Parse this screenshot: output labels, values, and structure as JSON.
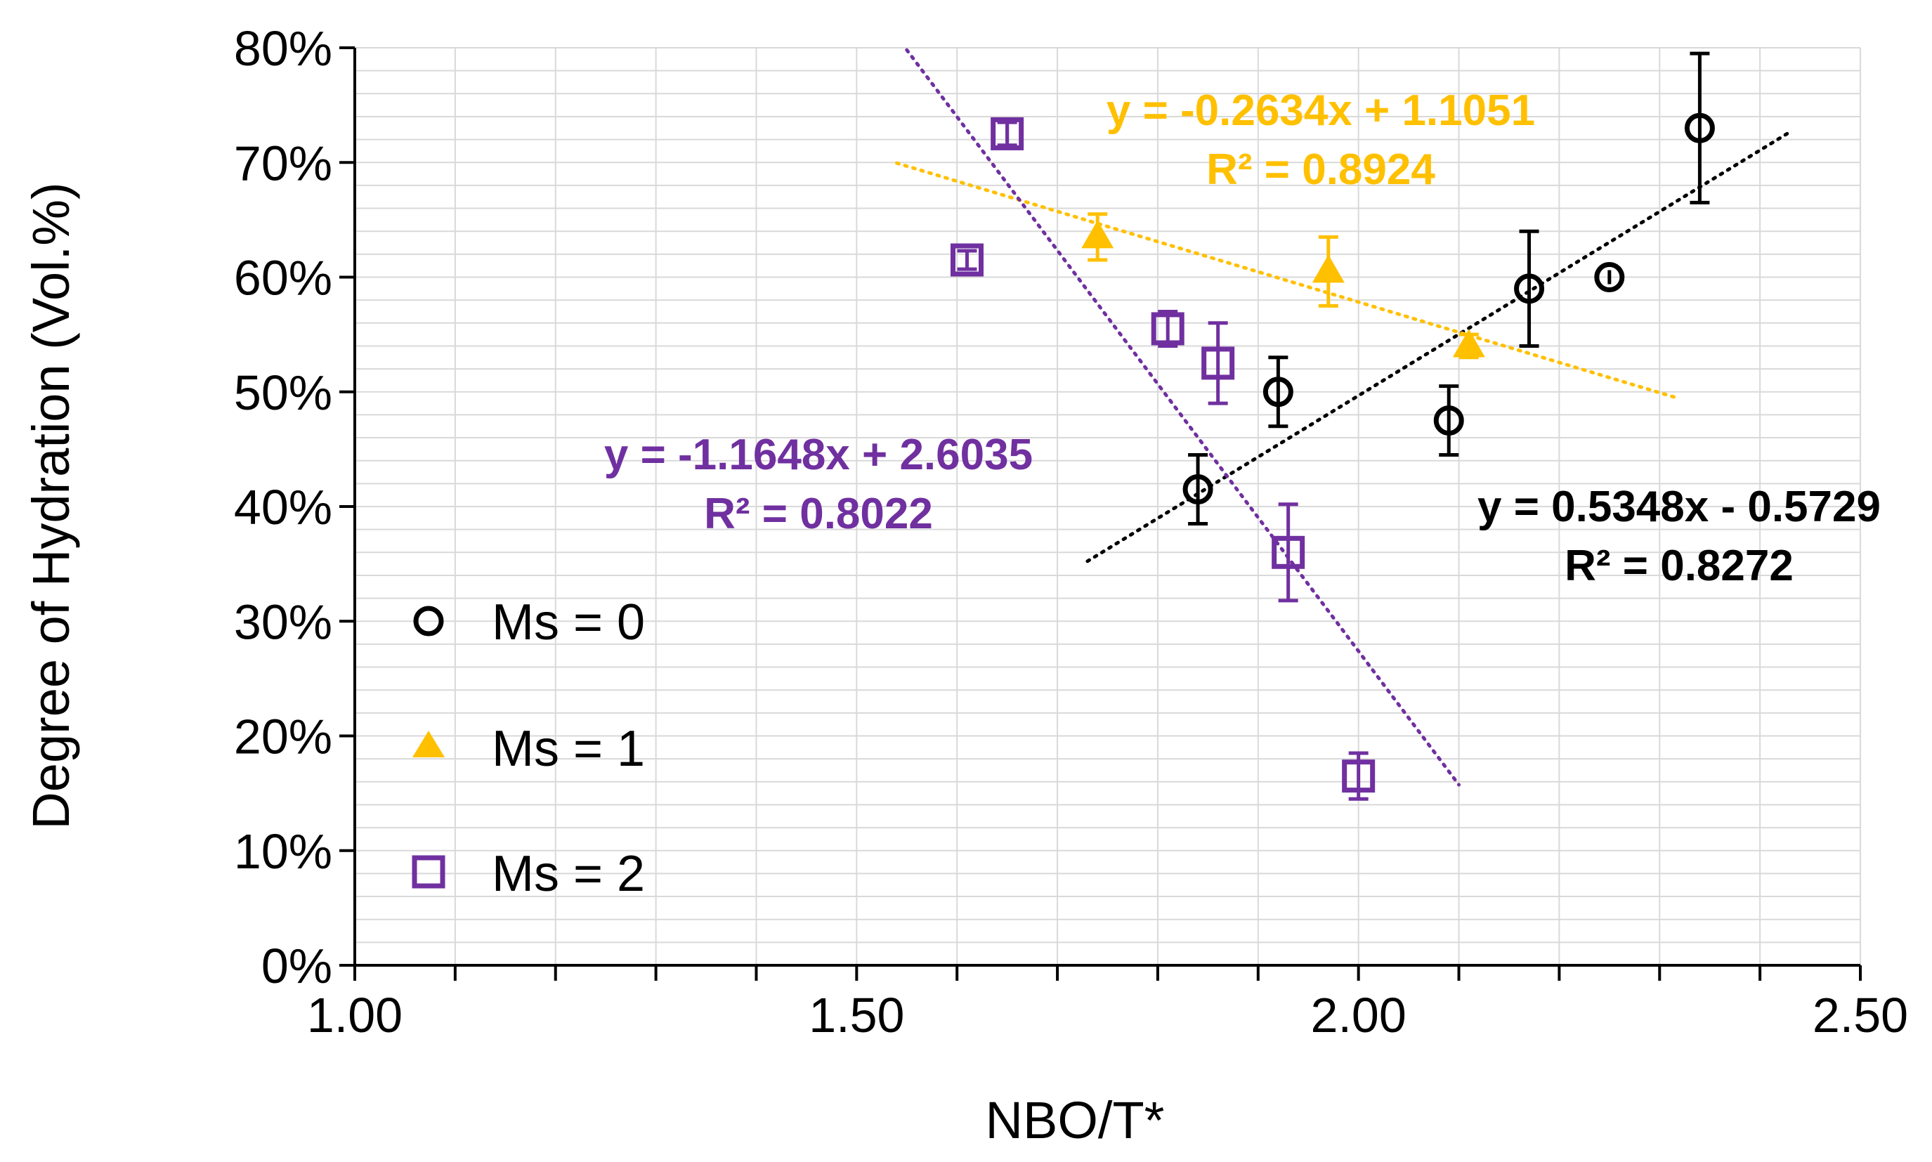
{
  "chart_data": {
    "type": "scatter",
    "xlabel": "NBO/T*",
    "ylabel": "Degree of Hydration  (Vol.%)",
    "xlim": [
      1.0,
      2.5
    ],
    "ylim": [
      0,
      0.8
    ],
    "x_ticks": [
      "1.00",
      "1.50",
      "2.00",
      "2.50"
    ],
    "y_ticks": [
      "0%",
      "10%",
      "20%",
      "30%",
      "40%",
      "50%",
      "60%",
      "70%",
      "80%"
    ],
    "x_minor_step": 0.1,
    "grid": true,
    "legend_position": "left-middle",
    "series": [
      {
        "name": "Ms = 0",
        "color": "#000000",
        "marker": "circle",
        "points": [
          {
            "x": 1.84,
            "y": 0.415,
            "err": 0.03
          },
          {
            "x": 1.92,
            "y": 0.5,
            "err": 0.03
          },
          {
            "x": 2.09,
            "y": 0.475,
            "err": 0.03
          },
          {
            "x": 2.17,
            "y": 0.59,
            "err": 0.05
          },
          {
            "x": 2.25,
            "y": 0.6,
            "err": 0.005
          },
          {
            "x": 2.34,
            "y": 0.73,
            "err": 0.065
          }
        ],
        "trendline": {
          "x_range": [
            1.73,
            2.43
          ],
          "slope": 0.5348,
          "intercept": -0.5729,
          "equation": "y = 0.5348x - 0.5729",
          "r2": "R² = 0.8272"
        }
      },
      {
        "name": "Ms = 1",
        "color": "#FFC000",
        "marker": "triangle",
        "points": [
          {
            "x": 1.74,
            "y": 0.635,
            "err": 0.02
          },
          {
            "x": 1.97,
            "y": 0.605,
            "err": 0.03
          },
          {
            "x": 2.11,
            "y": 0.54,
            "err": 0.01
          }
        ],
        "trendline": {
          "x_range": [
            1.54,
            2.32
          ],
          "slope": -0.2634,
          "intercept": 1.1051,
          "equation": "y = -0.2634x + 1.1051",
          "r2": "R² = 0.8924"
        }
      },
      {
        "name": "Ms = 2",
        "color": "#7030A0",
        "marker": "square",
        "points": [
          {
            "x": 1.61,
            "y": 0.615,
            "err": 0.008
          },
          {
            "x": 1.65,
            "y": 0.725,
            "err": 0.01
          },
          {
            "x": 1.81,
            "y": 0.555,
            "err": 0.015
          },
          {
            "x": 1.86,
            "y": 0.525,
            "err": 0.035
          },
          {
            "x": 1.93,
            "y": 0.36,
            "err": 0.042
          },
          {
            "x": 2.0,
            "y": 0.165,
            "err": 0.02
          }
        ],
        "trendline": {
          "x_range": [
            1.55,
            2.1
          ],
          "slope": -1.1648,
          "intercept": 2.6035,
          "equation": "y = -1.1648x + 2.6035",
          "r2": "R² = 0.8022"
        }
      }
    ]
  }
}
